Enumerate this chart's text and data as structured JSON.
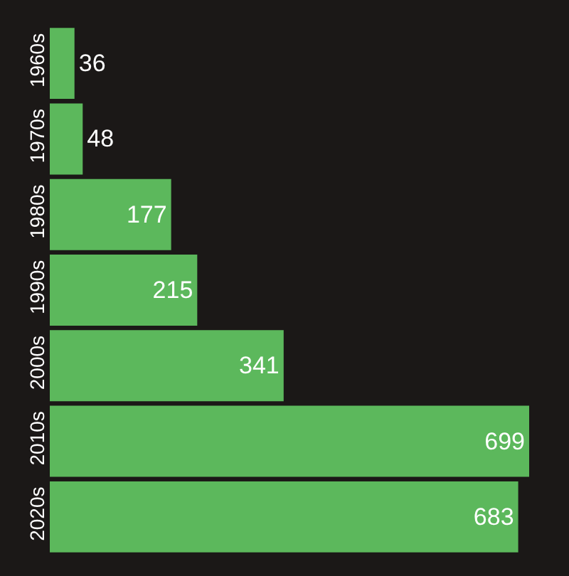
{
  "chart_data": {
    "type": "bar",
    "orientation": "horizontal",
    "categories": [
      "1960s",
      "1970s",
      "1980s",
      "1990s",
      "2000s",
      "2010s",
      "2020s"
    ],
    "values": [
      36,
      48,
      177,
      215,
      341,
      699,
      683
    ],
    "color": "#5cb85c",
    "data_labels": true,
    "xlim": [
      0,
      699
    ],
    "tick_labels": "y",
    "grid": false,
    "legend": false
  }
}
